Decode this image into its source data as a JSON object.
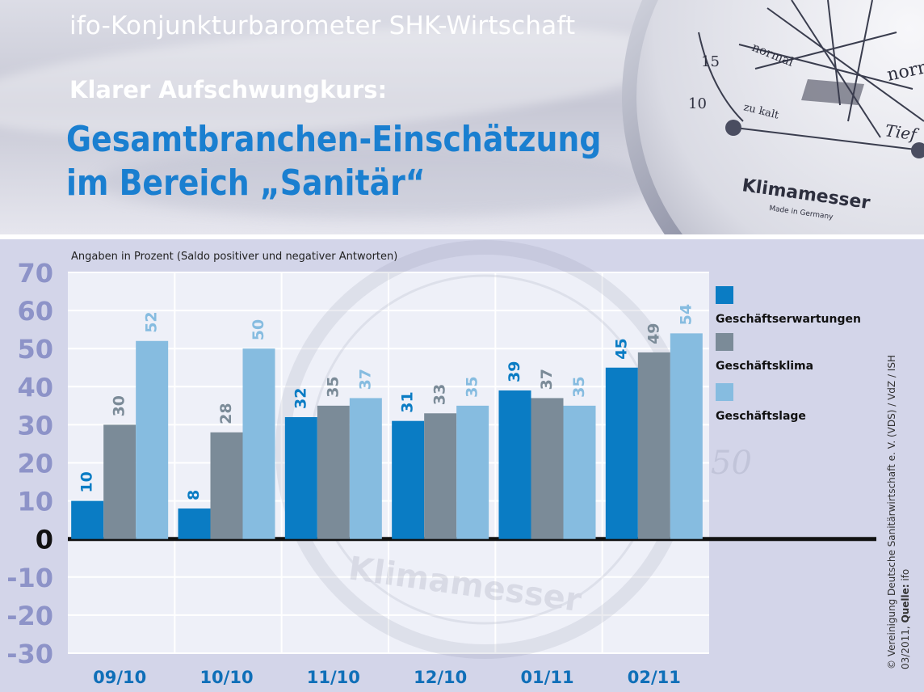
{
  "header": {
    "title": "ifo-Konjunkturbarometer SHK-Wirtschaft",
    "subtitle": "Klarer Aufschwungkurs:",
    "headline_line1": "Gesamtbranchen-Einschätzung",
    "headline_line2": "im Bereich „Sanitär“",
    "gauge_brand": "Klimamesser",
    "gauge_sub": "Made in Germany",
    "gauge_words": [
      "normal",
      "normal",
      "zu kalt",
      "Tief"
    ],
    "gauge_ticks": [
      "15",
      "10",
      "50"
    ]
  },
  "chart_data": {
    "type": "bar",
    "note": "Angaben in Prozent (Saldo positiver und negativer Antworten)",
    "categories": [
      "09/10",
      "10/10",
      "11/10",
      "12/10",
      "01/11",
      "02/11"
    ],
    "series": [
      {
        "name": "Geschäftserwartungen",
        "values": [
          10,
          8,
          32,
          31,
          39,
          45
        ],
        "color": "#0a7cc4"
      },
      {
        "name": "Geschäftsklima",
        "values": [
          30,
          28,
          35,
          33,
          37,
          49
        ],
        "color": "#7b8b98"
      },
      {
        "name": "Geschäftslage",
        "values": [
          52,
          50,
          37,
          35,
          35,
          54
        ],
        "color": "#86bce0"
      }
    ],
    "ylim": [
      -30,
      70
    ],
    "yticks": [
      "70",
      "60",
      "50",
      "40",
      "30",
      "20",
      "10",
      "0",
      "-10",
      "-20",
      "-30"
    ],
    "ytick_values": [
      70,
      60,
      50,
      40,
      30,
      20,
      10,
      0,
      -10,
      -20,
      -30
    ],
    "grid": true,
    "legend_position": "right",
    "colors": {
      "axis_label": "#8d93c8",
      "zero_label": "#111111",
      "category_label": "#0f6fb8",
      "panel_bg": "#d3d5e9",
      "plot_bg": "#eef0f8"
    }
  },
  "copyright": {
    "text": "© Vereinigung Deutsche Sanitärwirtschaft e. V. (VDS) / VdZ / ISH",
    "date": "03/2011,",
    "source_label": "Quelle:",
    "source": "ifo"
  }
}
